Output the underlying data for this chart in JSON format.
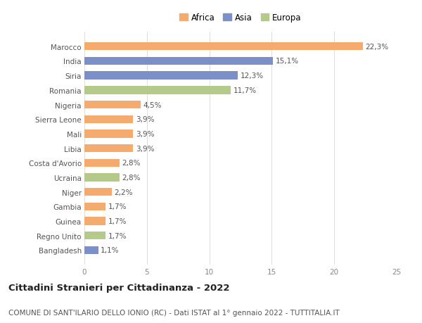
{
  "countries": [
    "Marocco",
    "India",
    "Siria",
    "Romania",
    "Nigeria",
    "Sierra Leone",
    "Mali",
    "Libia",
    "Costa d'Avorio",
    "Ucraina",
    "Niger",
    "Gambia",
    "Guinea",
    "Regno Unito",
    "Bangladesh"
  ],
  "values": [
    22.3,
    15.1,
    12.3,
    11.7,
    4.5,
    3.9,
    3.9,
    3.9,
    2.8,
    2.8,
    2.2,
    1.7,
    1.7,
    1.7,
    1.1
  ],
  "labels": [
    "22,3%",
    "15,1%",
    "12,3%",
    "11,7%",
    "4,5%",
    "3,9%",
    "3,9%",
    "3,9%",
    "2,8%",
    "2,8%",
    "2,2%",
    "1,7%",
    "1,7%",
    "1,7%",
    "1,1%"
  ],
  "continents": [
    "Africa",
    "Asia",
    "Asia",
    "Europa",
    "Africa",
    "Africa",
    "Africa",
    "Africa",
    "Africa",
    "Europa",
    "Africa",
    "Africa",
    "Africa",
    "Europa",
    "Asia"
  ],
  "colors": {
    "Africa": "#F5AA6E",
    "Asia": "#7B8FC8",
    "Europa": "#B5C98A"
  },
  "xlim": [
    0,
    25
  ],
  "xticks": [
    0,
    5,
    10,
    15,
    20,
    25
  ],
  "title_bold": "Cittadini Stranieri per Cittadinanza - 2022",
  "subtitle": "COMUNE DI SANT'ILARIO DELLO IONIO (RC) - Dati ISTAT al 1° gennaio 2022 - TUTTITALIA.IT",
  "background_color": "#ffffff",
  "bar_height": 0.55,
  "label_fontsize": 7.5,
  "tick_fontsize": 7.5,
  "xtick_fontsize": 7.5,
  "title_fontsize": 9.5,
  "subtitle_fontsize": 7.5,
  "legend_fontsize": 8.5
}
